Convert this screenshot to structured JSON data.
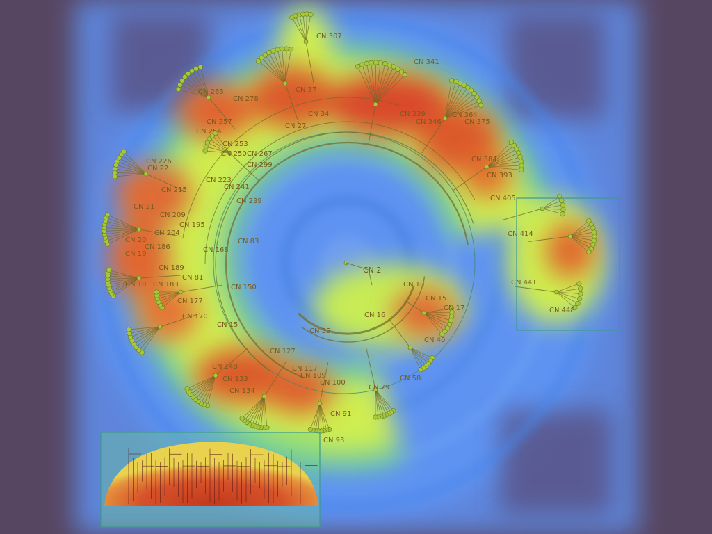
{
  "colors": {
    "background": "#574662",
    "heat_cool": "#5b8ff0",
    "heat_warm": "#e1f24a",
    "heat_hot": "#d7432a",
    "branch": "#6f6a2a",
    "node": "#a7c83a",
    "frame": "#3f9a8a"
  },
  "diagram": {
    "type": "radial-tree",
    "center_label": "CN 2",
    "labels": [
      "CN 307",
      "CN 263",
      "CN 278",
      "CN 257",
      "CN 254",
      "CN 253",
      "CN 250",
      "CN 267",
      "CN 299",
      "CN 226",
      "CN 22",
      "CN 215",
      "CN 223",
      "CN 241",
      "CN 239",
      "CN 21",
      "CN 209",
      "CN 195",
      "CN 20",
      "CN 204",
      "CN 19",
      "CN 186",
      "CN 189",
      "CN 168",
      "CN 18",
      "CN 183",
      "CN 81",
      "CN 177",
      "CN 170",
      "CN 15",
      "CN 150",
      "CN 83",
      "CN 148",
      "CN 133",
      "CN 134",
      "CN 127",
      "CN 117",
      "CN 109",
      "CN 100",
      "CN 91",
      "CN 93",
      "CN 79",
      "CN 58",
      "CN 35",
      "CN 10",
      "CN 15",
      "CN 17",
      "CN 16",
      "CN 40",
      "CN 341",
      "CN 346",
      "CN 375",
      "CN 384",
      "CN 393",
      "CN 405",
      "CN 414",
      "CN 441",
      "CN 448",
      "CN 37",
      "CN 34",
      "CN 27",
      "CN 339",
      "CN 364"
    ]
  },
  "insets": {
    "overview": "overview-inset",
    "magnifier": "magnifier-box"
  }
}
